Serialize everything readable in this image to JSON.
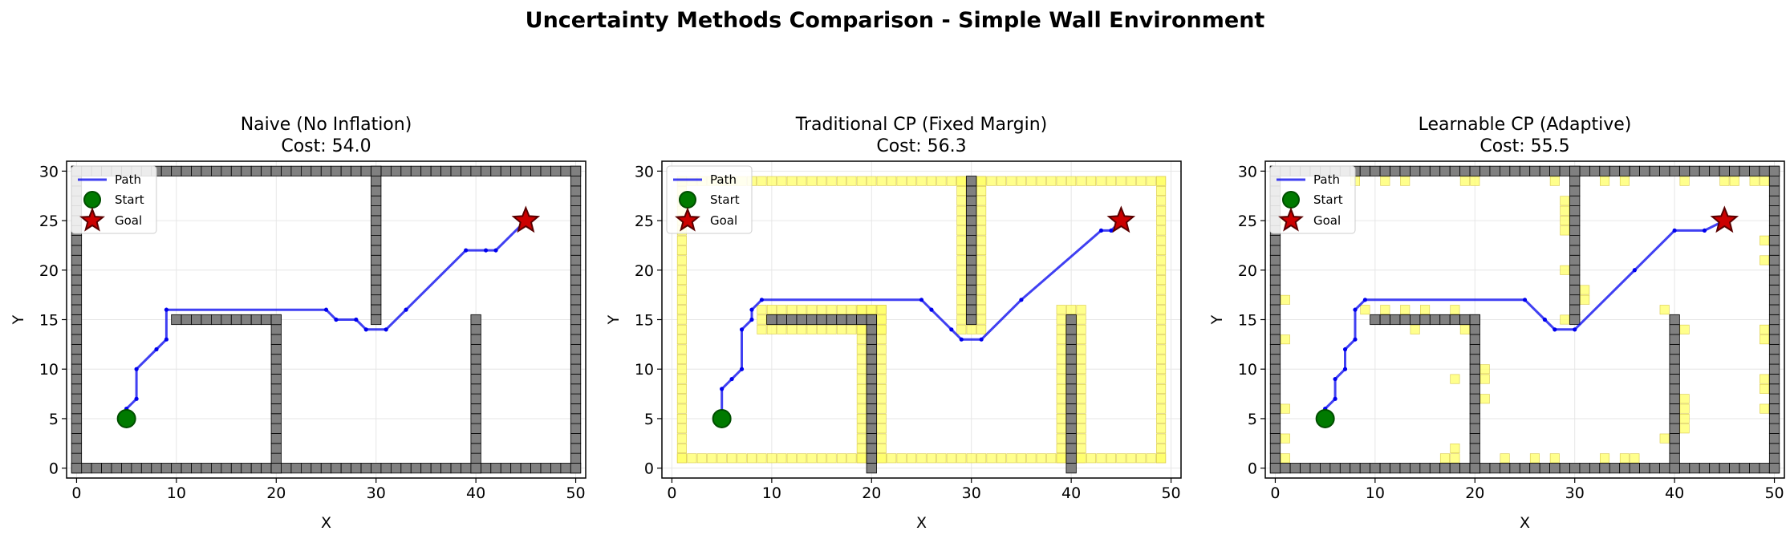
{
  "figure": {
    "title": "Uncertainty Methods Comparison - Simple Wall Environment"
  },
  "colors": {
    "wall": "#808080",
    "wall_edge": "#000000",
    "inflation": "#ffff66",
    "inflation_edge": "#d8c84a",
    "path": "#0000ee",
    "start": "#007a00",
    "goal": "#cc0000",
    "grid": "#e6e6e6"
  },
  "chart_data": [
    {
      "type": "scatter",
      "title": "Naive (No Inflation)",
      "subtitle": "Cost: 54.0",
      "xlabel": "X",
      "ylabel": "Y",
      "xlim": [
        -1,
        51
      ],
      "ylim": [
        -1,
        31
      ],
      "xticks": [
        0,
        10,
        20,
        30,
        40,
        50
      ],
      "yticks": [
        0,
        5,
        10,
        15,
        20,
        25,
        30
      ],
      "grid": true,
      "legend": {
        "placement": "top-left",
        "entries": [
          "Path",
          "Start",
          "Goal"
        ]
      },
      "start": [
        5,
        5
      ],
      "goal": [
        45,
        25
      ],
      "walls": [
        {
          "x": [
            0,
            50
          ],
          "y": [
            0,
            0
          ]
        },
        {
          "x": [
            0,
            50
          ],
          "y": [
            30,
            30
          ]
        },
        {
          "x": [
            0,
            0
          ],
          "y": [
            0,
            30
          ]
        },
        {
          "x": [
            50,
            50
          ],
          "y": [
            0,
            30
          ]
        },
        {
          "x": [
            20,
            20
          ],
          "y": [
            0,
            15
          ]
        },
        {
          "x": [
            10,
            20
          ],
          "y": [
            15,
            15
          ]
        },
        {
          "x": [
            30,
            30
          ],
          "y": [
            15,
            30
          ]
        },
        {
          "x": [
            40,
            40
          ],
          "y": [
            0,
            15
          ]
        }
      ],
      "inflation": [],
      "path": [
        [
          5,
          5
        ],
        [
          5,
          6
        ],
        [
          6,
          7
        ],
        [
          6,
          10
        ],
        [
          8,
          12
        ],
        [
          9,
          13
        ],
        [
          9,
          16
        ],
        [
          25,
          16
        ],
        [
          26,
          15
        ],
        [
          28,
          15
        ],
        [
          29,
          14
        ],
        [
          31,
          14
        ],
        [
          33,
          16
        ],
        [
          39,
          22
        ],
        [
          41,
          22
        ],
        [
          42,
          22
        ],
        [
          45,
          25
        ]
      ]
    },
    {
      "type": "scatter",
      "title": "Traditional CP (Fixed Margin)",
      "subtitle": "Cost: 56.3",
      "xlabel": "X",
      "ylabel": "Y",
      "xlim": [
        -1,
        51
      ],
      "ylim": [
        -1,
        31
      ],
      "xticks": [
        0,
        10,
        20,
        30,
        40,
        50
      ],
      "yticks": [
        0,
        5,
        10,
        15,
        20,
        25,
        30
      ],
      "grid": true,
      "legend": {
        "placement": "top-left",
        "entries": [
          "Path",
          "Start",
          "Goal"
        ]
      },
      "start": [
        5,
        5
      ],
      "goal": [
        45,
        25
      ],
      "walls": [
        {
          "x": [
            20,
            20
          ],
          "y": [
            0,
            15
          ]
        },
        {
          "x": [
            10,
            20
          ],
          "y": [
            15,
            15
          ]
        },
        {
          "x": [
            30,
            30
          ],
          "y": [
            15,
            29
          ]
        },
        {
          "x": [
            40,
            40
          ],
          "y": [
            0,
            15
          ]
        }
      ],
      "inflation": [
        {
          "x": [
            1,
            49
          ],
          "y": [
            1,
            1
          ]
        },
        {
          "x": [
            1,
            49
          ],
          "y": [
            29,
            29
          ]
        },
        {
          "x": [
            1,
            1
          ],
          "y": [
            1,
            29
          ]
        },
        {
          "x": [
            49,
            49
          ],
          "y": [
            1,
            29
          ]
        },
        {
          "x": [
            19,
            21
          ],
          "y": [
            1,
            16
          ]
        },
        {
          "x": [
            9,
            21
          ],
          "y": [
            14,
            16
          ]
        },
        {
          "x": [
            29,
            31
          ],
          "y": [
            14,
            29
          ]
        },
        {
          "x": [
            39,
            41
          ],
          "y": [
            1,
            16
          ]
        }
      ],
      "path": [
        [
          5,
          5
        ],
        [
          5,
          8
        ],
        [
          6,
          9
        ],
        [
          7,
          10
        ],
        [
          7,
          14
        ],
        [
          8,
          15
        ],
        [
          8,
          16
        ],
        [
          9,
          17
        ],
        [
          25,
          17
        ],
        [
          26,
          16
        ],
        [
          28,
          14
        ],
        [
          29,
          13
        ],
        [
          31,
          13
        ],
        [
          35,
          17
        ],
        [
          43,
          24
        ],
        [
          44,
          24
        ],
        [
          45,
          25
        ]
      ]
    },
    {
      "type": "scatter",
      "title": "Learnable CP (Adaptive)",
      "subtitle": "Cost: 55.5",
      "xlabel": "X",
      "ylabel": "Y",
      "xlim": [
        -1,
        51
      ],
      "ylim": [
        -1,
        31
      ],
      "xticks": [
        0,
        10,
        20,
        30,
        40,
        50
      ],
      "yticks": [
        0,
        5,
        10,
        15,
        20,
        25,
        30
      ],
      "grid": true,
      "legend": {
        "placement": "top-left",
        "entries": [
          "Path",
          "Start",
          "Goal"
        ]
      },
      "start": [
        5,
        5
      ],
      "goal": [
        45,
        25
      ],
      "walls": [
        {
          "x": [
            0,
            50
          ],
          "y": [
            0,
            0
          ]
        },
        {
          "x": [
            0,
            50
          ],
          "y": [
            30,
            30
          ]
        },
        {
          "x": [
            0,
            0
          ],
          "y": [
            0,
            30
          ]
        },
        {
          "x": [
            50,
            50
          ],
          "y": [
            0,
            30
          ]
        },
        {
          "x": [
            20,
            20
          ],
          "y": [
            0,
            15
          ]
        },
        {
          "x": [
            10,
            20
          ],
          "y": [
            15,
            15
          ]
        },
        {
          "x": [
            30,
            30
          ],
          "y": [
            15,
            30
          ]
        },
        {
          "x": [
            40,
            40
          ],
          "y": [
            0,
            15
          ]
        }
      ],
      "inflation": [
        {
          "x": [
            1,
            1
          ],
          "y": [
            1,
            1
          ]
        },
        {
          "x": [
            1,
            1
          ],
          "y": [
            3,
            3
          ]
        },
        {
          "x": [
            1,
            1
          ],
          "y": [
            6,
            6
          ]
        },
        {
          "x": [
            1,
            1
          ],
          "y": [
            13,
            13
          ]
        },
        {
          "x": [
            1,
            1
          ],
          "y": [
            17,
            17
          ]
        },
        {
          "x": [
            1,
            1
          ],
          "y": [
            25,
            25
          ]
        },
        {
          "x": [
            8,
            8
          ],
          "y": [
            29,
            29
          ]
        },
        {
          "x": [
            11,
            11
          ],
          "y": [
            29,
            29
          ]
        },
        {
          "x": [
            13,
            13
          ],
          "y": [
            29,
            29
          ]
        },
        {
          "x": [
            19,
            20
          ],
          "y": [
            29,
            29
          ]
        },
        {
          "x": [
            28,
            28
          ],
          "y": [
            29,
            29
          ]
        },
        {
          "x": [
            33,
            33
          ],
          "y": [
            29,
            29
          ]
        },
        {
          "x": [
            35,
            35
          ],
          "y": [
            29,
            29
          ]
        },
        {
          "x": [
            41,
            41
          ],
          "y": [
            29,
            29
          ]
        },
        {
          "x": [
            45,
            46
          ],
          "y": [
            29,
            29
          ]
        },
        {
          "x": [
            48,
            49
          ],
          "y": [
            29,
            29
          ]
        },
        {
          "x": [
            29,
            29
          ],
          "y": [
            24,
            27
          ]
        },
        {
          "x": [
            29,
            29
          ],
          "y": [
            20,
            20
          ]
        },
        {
          "x": [
            29,
            29
          ],
          "y": [
            15,
            15
          ]
        },
        {
          "x": [
            31,
            31
          ],
          "y": [
            17,
            18
          ]
        },
        {
          "x": [
            9,
            9
          ],
          "y": [
            16,
            16
          ]
        },
        {
          "x": [
            11,
            11
          ],
          "y": [
            15,
            16
          ]
        },
        {
          "x": [
            13,
            13
          ],
          "y": [
            15,
            16
          ]
        },
        {
          "x": [
            14,
            14
          ],
          "y": [
            14,
            14
          ]
        },
        {
          "x": [
            15,
            15
          ],
          "y": [
            16,
            16
          ]
        },
        {
          "x": [
            18,
            18
          ],
          "y": [
            15,
            16
          ]
        },
        {
          "x": [
            19,
            19
          ],
          "y": [
            14,
            14
          ]
        },
        {
          "x": [
            18,
            18
          ],
          "y": [
            9,
            9
          ]
        },
        {
          "x": [
            21,
            21
          ],
          "y": [
            7,
            7
          ]
        },
        {
          "x": [
            21,
            21
          ],
          "y": [
            9,
            10
          ]
        },
        {
          "x": [
            18,
            18
          ],
          "y": [
            1,
            2
          ]
        },
        {
          "x": [
            17,
            17
          ],
          "y": [
            1,
            1
          ]
        },
        {
          "x": [
            23,
            23
          ],
          "y": [
            1,
            1
          ]
        },
        {
          "x": [
            26,
            26
          ],
          "y": [
            1,
            1
          ]
        },
        {
          "x": [
            28,
            28
          ],
          "y": [
            1,
            1
          ]
        },
        {
          "x": [
            33,
            33
          ],
          "y": [
            1,
            1
          ]
        },
        {
          "x": [
            35,
            36
          ],
          "y": [
            1,
            1
          ]
        },
        {
          "x": [
            41,
            41
          ],
          "y": [
            4,
            7
          ]
        },
        {
          "x": [
            39,
            39
          ],
          "y": [
            3,
            3
          ]
        },
        {
          "x": [
            39,
            39
          ],
          "y": [
            16,
            16
          ]
        },
        {
          "x": [
            41,
            41
          ],
          "y": [
            14,
            14
          ]
        },
        {
          "x": [
            49,
            49
          ],
          "y": [
            6,
            6
          ]
        },
        {
          "x": [
            49,
            49
          ],
          "y": [
            8,
            9
          ]
        },
        {
          "x": [
            49,
            49
          ],
          "y": [
            13,
            14
          ]
        },
        {
          "x": [
            49,
            49
          ],
          "y": [
            21,
            21
          ]
        },
        {
          "x": [
            49,
            49
          ],
          "y": [
            23,
            23
          ]
        }
      ],
      "path": [
        [
          5,
          5
        ],
        [
          5,
          6
        ],
        [
          6,
          7
        ],
        [
          6,
          9
        ],
        [
          7,
          10
        ],
        [
          7,
          12
        ],
        [
          8,
          13
        ],
        [
          8,
          16
        ],
        [
          9,
          17
        ],
        [
          25,
          17
        ],
        [
          27,
          15
        ],
        [
          28,
          14
        ],
        [
          30,
          14
        ],
        [
          36,
          20
        ],
        [
          40,
          24
        ],
        [
          43,
          24
        ],
        [
          45,
          25
        ]
      ]
    }
  ]
}
